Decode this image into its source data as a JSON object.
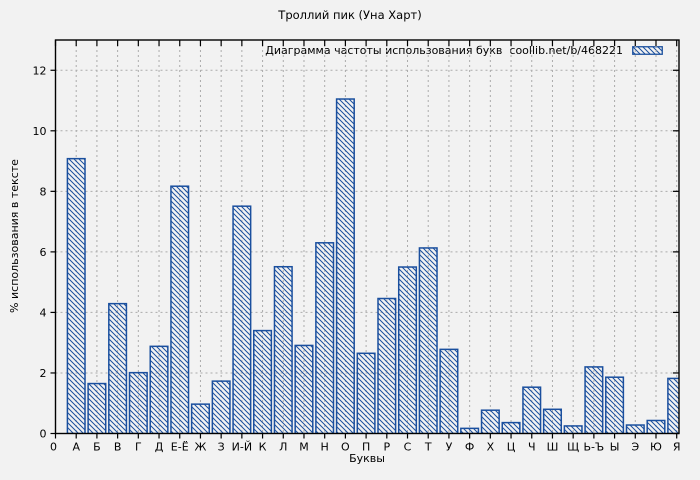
{
  "chart_data": {
    "type": "bar",
    "title": "Троллий пик (Уна Харт)",
    "legend": "Диаграмма частоты использования букв  coollib.net/b/468221",
    "xlabel": "Буквы",
    "ylabel": "% использования в тексте",
    "origin_label": "0",
    "categories": [
      "А",
      "Б",
      "В",
      "Г",
      "Д",
      "Е-Ё",
      "Ж",
      "З",
      "И-Й",
      "К",
      "Л",
      "М",
      "Н",
      "О",
      "П",
      "Р",
      "С",
      "Т",
      "У",
      "Ф",
      "Х",
      "Ц",
      "Ч",
      "Ш",
      "Щ",
      "Ь-Ъ",
      "Ы",
      "Э",
      "Ю",
      "Я"
    ],
    "values": [
      9.08,
      1.65,
      4.29,
      2.01,
      2.88,
      8.17,
      0.97,
      1.73,
      7.51,
      3.4,
      5.51,
      2.91,
      6.3,
      11.05,
      2.65,
      4.46,
      5.5,
      6.13,
      2.78,
      0.17,
      0.77,
      0.36,
      1.53,
      0.8,
      0.25,
      2.2,
      1.86,
      0.28,
      0.43,
      1.82
    ],
    "y_ticks": [
      0,
      2,
      4,
      6,
      8,
      10,
      12
    ],
    "ylim": [
      0,
      13
    ],
    "grid": true,
    "legend_position": "top-right",
    "bar_color": "#1a4f9e",
    "hatch": "diagonal-backslash",
    "grid_color": "#ababab",
    "background": "#f2f2f2",
    "axis_color": "#000000"
  }
}
